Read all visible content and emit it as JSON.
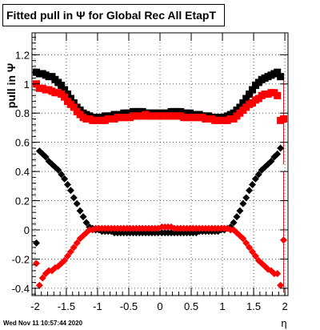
{
  "canvas_title": "Fitted pull in  Ψ  for Global Rec All EtapT",
  "timestamp": "Wed Nov 11 10:57:44 2020",
  "chart_data": {
    "type": "scatter",
    "title": "Fitted pull in  Ψ  for Global Rec All EtapT",
    "xlabel": "η",
    "ylabel": "pull in Ψ",
    "xlim": [
      -2.05,
      2.05
    ],
    "ylim": [
      -0.45,
      1.35
    ],
    "grid": true,
    "xticks": [
      -2,
      -1.5,
      -1,
      -0.5,
      0,
      0.5,
      1,
      1.5,
      2
    ],
    "xtick_labels": [
      "-2",
      "-1.5",
      "-1",
      "-0.5",
      "0",
      "0.5",
      "1",
      "1.5",
      "2"
    ],
    "yticks": [
      -0.4,
      -0.2,
      0,
      0.2,
      0.4,
      0.6,
      0.8,
      1,
      1.2
    ],
    "ytick_labels": [
      "-0.4",
      "-0.2",
      "0",
      "0.2",
      "0.4",
      "0.6",
      "0.8",
      "1",
      "1.2"
    ],
    "series": [
      {
        "color": "#000000",
        "marker": "square",
        "x": [
          -1.98,
          -1.93,
          -1.88,
          -1.83,
          -1.78,
          -1.73,
          -1.68,
          -1.63,
          -1.58,
          -1.53,
          -1.48,
          -1.43,
          -1.38,
          -1.33,
          -1.28,
          -1.23,
          -1.18,
          -1.13,
          -1.08,
          -1.03,
          -0.98,
          -0.93,
          -0.88,
          -0.83,
          -0.78,
          -0.73,
          -0.68,
          -0.63,
          -0.58,
          -0.53,
          -0.48,
          -0.43,
          -0.38,
          -0.33,
          -0.28,
          -0.23,
          -0.18,
          -0.13,
          -0.08,
          -0.03,
          0.03,
          0.08,
          0.13,
          0.18,
          0.23,
          0.28,
          0.33,
          0.38,
          0.43,
          0.48,
          0.53,
          0.58,
          0.63,
          0.68,
          0.73,
          0.78,
          0.83,
          0.88,
          0.93,
          0.98,
          1.03,
          1.08,
          1.13,
          1.18,
          1.23,
          1.28,
          1.33,
          1.38,
          1.43,
          1.48,
          1.53,
          1.58,
          1.63,
          1.68,
          1.73,
          1.78,
          1.83,
          1.88,
          1.93
        ],
        "y": [
          1.08,
          1.07,
          1.07,
          1.06,
          1.05,
          1.05,
          1.03,
          1.01,
          0.99,
          0.96,
          0.93,
          0.9,
          0.87,
          0.84,
          0.82,
          0.8,
          0.79,
          0.78,
          0.77,
          0.77,
          0.77,
          0.77,
          0.78,
          0.78,
          0.78,
          0.79,
          0.79,
          0.79,
          0.8,
          0.8,
          0.8,
          0.81,
          0.81,
          0.81,
          0.81,
          0.8,
          0.8,
          0.8,
          0.8,
          0.8,
          0.8,
          0.8,
          0.8,
          0.81,
          0.81,
          0.81,
          0.81,
          0.8,
          0.8,
          0.8,
          0.79,
          0.79,
          0.79,
          0.78,
          0.78,
          0.78,
          0.77,
          0.77,
          0.77,
          0.77,
          0.77,
          0.78,
          0.79,
          0.8,
          0.82,
          0.84,
          0.87,
          0.9,
          0.93,
          0.96,
          0.99,
          1.01,
          1.03,
          1.04,
          1.05,
          1.06,
          1.07,
          1.08,
          1.05
        ]
      },
      {
        "color": "#ff0000",
        "marker": "square",
        "x": [
          -1.98,
          -1.93,
          -1.88,
          -1.83,
          -1.78,
          -1.73,
          -1.68,
          -1.63,
          -1.58,
          -1.53,
          -1.48,
          -1.43,
          -1.38,
          -1.33,
          -1.28,
          -1.23,
          -1.18,
          -1.13,
          -1.08,
          -1.03,
          -0.98,
          -0.93,
          -0.88,
          -0.83,
          -0.78,
          -0.73,
          -0.68,
          -0.63,
          -0.58,
          -0.53,
          -0.48,
          -0.43,
          -0.38,
          -0.33,
          -0.28,
          -0.23,
          -0.18,
          -0.13,
          -0.08,
          -0.03,
          0.03,
          0.08,
          0.13,
          0.18,
          0.23,
          0.28,
          0.33,
          0.38,
          0.43,
          0.48,
          0.53,
          0.58,
          0.63,
          0.68,
          0.73,
          0.78,
          0.83,
          0.88,
          0.93,
          0.98,
          1.03,
          1.08,
          1.13,
          1.18,
          1.23,
          1.28,
          1.33,
          1.38,
          1.43,
          1.48,
          1.53,
          1.58,
          1.63,
          1.68,
          1.73,
          1.78,
          1.83,
          1.88,
          1.93
        ],
        "y": [
          1.0,
          0.97,
          0.97,
          0.96,
          0.96,
          0.95,
          0.94,
          0.94,
          0.93,
          0.91,
          0.88,
          0.86,
          0.84,
          0.81,
          0.79,
          0.77,
          0.76,
          0.76,
          0.75,
          0.75,
          0.75,
          0.75,
          0.75,
          0.76,
          0.76,
          0.76,
          0.77,
          0.77,
          0.77,
          0.77,
          0.77,
          0.78,
          0.78,
          0.78,
          0.78,
          0.79,
          0.78,
          0.78,
          0.78,
          0.78,
          0.78,
          0.78,
          0.78,
          0.78,
          0.78,
          0.78,
          0.78,
          0.77,
          0.77,
          0.77,
          0.77,
          0.77,
          0.77,
          0.77,
          0.76,
          0.76,
          0.76,
          0.75,
          0.75,
          0.75,
          0.75,
          0.75,
          0.76,
          0.76,
          0.78,
          0.8,
          0.82,
          0.84,
          0.86,
          0.87,
          0.89,
          0.9,
          0.92,
          0.93,
          0.93,
          0.94,
          0.94,
          0.92,
          0.75
        ]
      },
      {
        "color": "#000000",
        "marker": "diamond",
        "x": [
          -1.98,
          -1.93,
          -1.88,
          -1.83,
          -1.78,
          -1.73,
          -1.68,
          -1.63,
          -1.58,
          -1.53,
          -1.48,
          -1.43,
          -1.38,
          -1.33,
          -1.28,
          -1.23,
          -1.18,
          -1.13,
          -1.08,
          -1.03,
          -0.98,
          -0.93,
          -0.88,
          -0.83,
          -0.78,
          -0.73,
          -0.68,
          -0.63,
          -0.58,
          -0.53,
          -0.48,
          -0.43,
          -0.38,
          -0.33,
          -0.28,
          -0.23,
          -0.18,
          -0.13,
          -0.08,
          -0.03,
          0.03,
          0.08,
          0.13,
          0.18,
          0.23,
          0.28,
          0.33,
          0.38,
          0.43,
          0.48,
          0.53,
          0.58,
          0.63,
          0.68,
          0.73,
          0.78,
          0.83,
          0.88,
          0.93,
          0.98,
          1.03,
          1.08,
          1.13,
          1.18,
          1.23,
          1.28,
          1.33,
          1.38,
          1.43,
          1.48,
          1.53,
          1.58,
          1.63,
          1.68,
          1.73,
          1.78,
          1.83,
          1.88,
          1.93
        ],
        "y": [
          -0.09,
          0.54,
          0.52,
          0.5,
          0.47,
          0.45,
          0.43,
          0.41,
          0.38,
          0.35,
          0.31,
          0.27,
          0.22,
          0.18,
          0.13,
          0.09,
          0.05,
          0.02,
          0.01,
          0.0,
          0.0,
          -0.01,
          -0.01,
          -0.01,
          -0.01,
          -0.02,
          -0.02,
          -0.02,
          -0.02,
          -0.02,
          -0.02,
          -0.02,
          -0.02,
          -0.02,
          -0.02,
          -0.02,
          -0.02,
          -0.02,
          -0.02,
          -0.02,
          -0.02,
          -0.02,
          -0.02,
          -0.02,
          -0.02,
          -0.02,
          -0.02,
          -0.02,
          -0.02,
          -0.02,
          -0.02,
          -0.02,
          -0.01,
          -0.01,
          -0.01,
          -0.01,
          -0.01,
          -0.01,
          -0.01,
          0.0,
          0.0,
          0.01,
          0.02,
          0.05,
          0.09,
          0.13,
          0.18,
          0.22,
          0.27,
          0.31,
          0.35,
          0.38,
          0.41,
          0.43,
          0.45,
          0.47,
          0.5,
          0.52,
          0.56
        ]
      },
      {
        "color": "#ff0000",
        "marker": "diamond",
        "x": [
          -1.98,
          -1.93,
          -1.88,
          -1.83,
          -1.78,
          -1.73,
          -1.68,
          -1.63,
          -1.58,
          -1.53,
          -1.48,
          -1.43,
          -1.38,
          -1.33,
          -1.28,
          -1.23,
          -1.18,
          -1.13,
          -1.08,
          -1.03,
          -0.98,
          -0.93,
          -0.88,
          -0.83,
          -0.78,
          -0.73,
          -0.68,
          -0.63,
          -0.58,
          -0.53,
          -0.48,
          -0.43,
          -0.38,
          -0.33,
          -0.28,
          -0.23,
          -0.18,
          -0.13,
          -0.08,
          -0.03,
          0.03,
          0.08,
          0.13,
          0.18,
          0.23,
          0.28,
          0.33,
          0.38,
          0.43,
          0.48,
          0.53,
          0.58,
          0.63,
          0.68,
          0.73,
          0.78,
          0.83,
          0.88,
          0.93,
          0.98,
          1.03,
          1.08,
          1.13,
          1.18,
          1.23,
          1.28,
          1.33,
          1.38,
          1.43,
          1.48,
          1.53,
          1.58,
          1.63,
          1.68,
          1.73,
          1.78,
          1.83,
          1.88,
          1.93
        ],
        "y": [
          -0.23,
          -0.38,
          -0.33,
          -0.3,
          -0.28,
          -0.28,
          -0.26,
          -0.25,
          -0.23,
          -0.21,
          -0.18,
          -0.15,
          -0.12,
          -0.09,
          -0.06,
          -0.04,
          -0.02,
          0.0,
          0.0,
          0.01,
          0.01,
          0.01,
          0.01,
          0.01,
          0.01,
          0.01,
          0.01,
          0.01,
          0.01,
          0.01,
          0.01,
          0.01,
          0.01,
          0.01,
          0.01,
          0.01,
          0.01,
          0.01,
          0.01,
          0.01,
          0.02,
          0.02,
          0.02,
          0.02,
          0.01,
          0.01,
          0.01,
          0.01,
          0.01,
          0.01,
          0.01,
          0.01,
          0.01,
          0.01,
          0.01,
          0.01,
          0.01,
          0.01,
          0.01,
          0.01,
          0.01,
          0.01,
          0.0,
          0.0,
          -0.02,
          -0.04,
          -0.06,
          -0.09,
          -0.12,
          -0.15,
          -0.18,
          -0.21,
          -0.23,
          -0.25,
          -0.27,
          -0.28,
          -0.3,
          -0.3,
          -0.38
        ]
      }
    ],
    "end_points": [
      {
        "x": 1.98,
        "y": -0.07,
        "color": "#ff0000",
        "marker": "diamond"
      },
      {
        "x": 1.98,
        "y": 0.76,
        "color": "#ff0000",
        "marker": "square"
      }
    ]
  }
}
